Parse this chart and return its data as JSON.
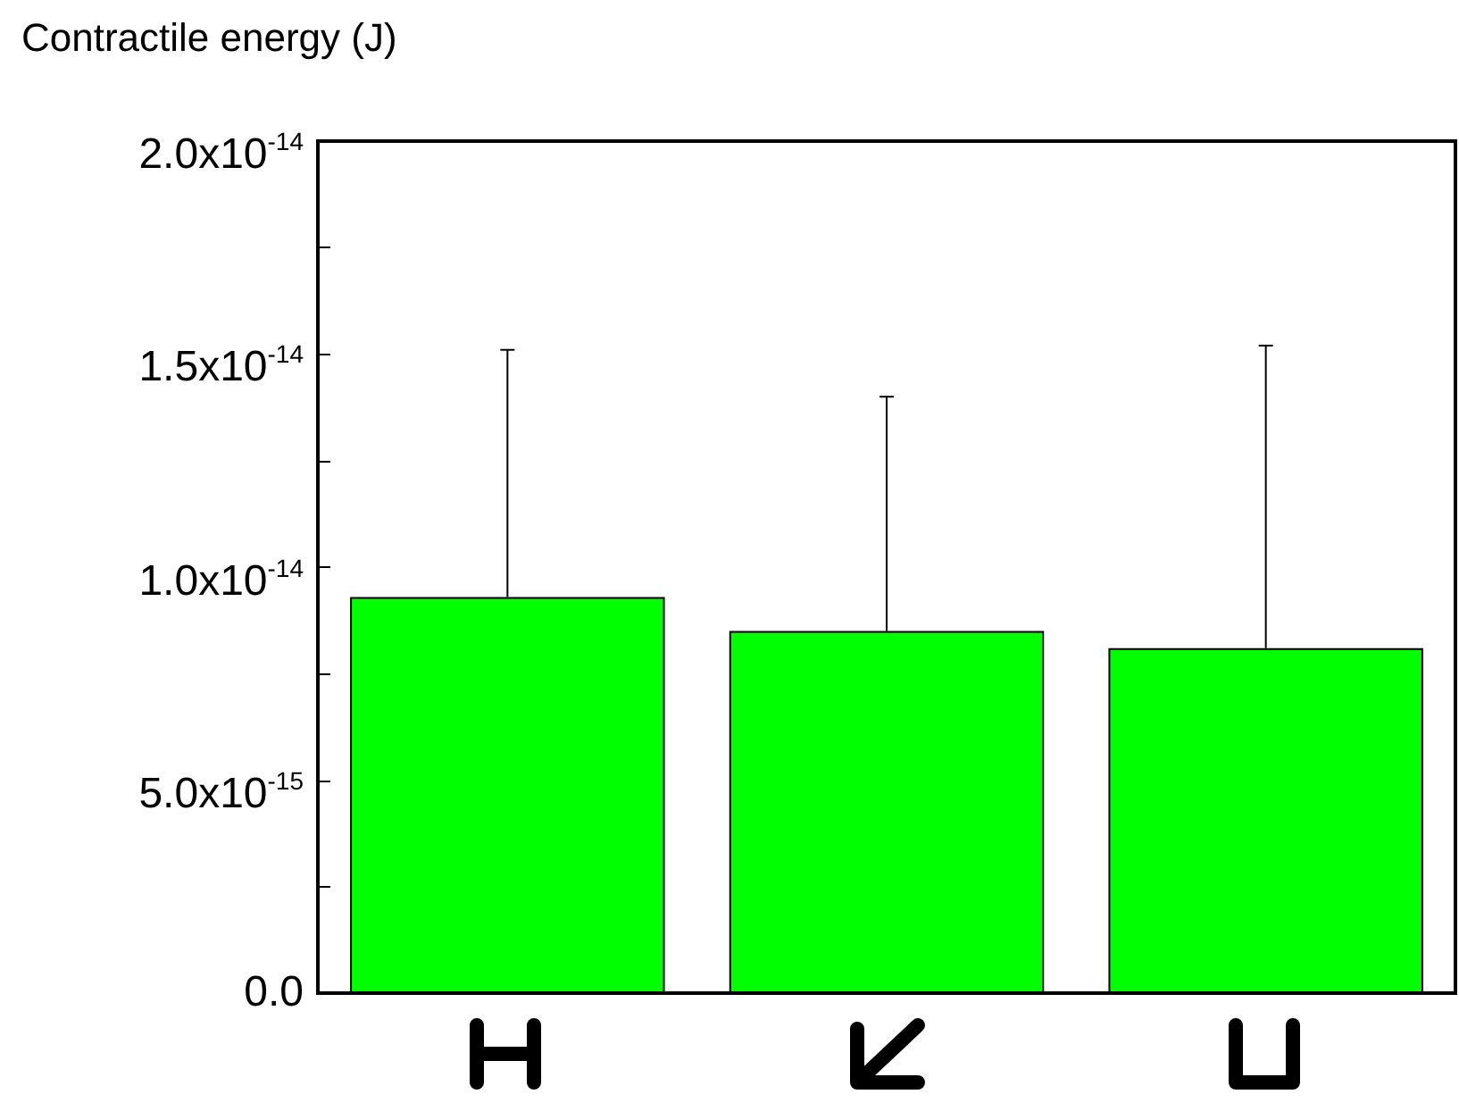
{
  "chart_data": {
    "type": "bar",
    "ylabel": "Contractile energy (J)",
    "categories": [
      null,
      null,
      null
    ],
    "values": [
      9.3e-15,
      8.5e-15,
      8.1e-15
    ],
    "errors": [
      [
        9.3e-15,
        1.51e-14
      ],
      [
        8.5e-15,
        1.4e-14
      ],
      [
        8.1e-15,
        1.52e-14
      ]
    ],
    "color": "#00ff00",
    "ylim": [
      0,
      2e-14
    ],
    "yticks": [
      {
        "value": 0,
        "label": "0.0"
      },
      {
        "value": 2.5e-15,
        "label": null
      },
      {
        "value": 5e-15,
        "label": "5.0x10$^{-15}$"
      },
      {
        "value": 7.5e-15,
        "label": null
      },
      {
        "value": 1e-14,
        "label": "1.0x10$^{-14}$"
      },
      {
        "value": 1.25e-14,
        "label": null
      },
      {
        "value": 1.5e-14,
        "label": "1.5x10$^{-14}$"
      },
      {
        "value": 1.75e-14,
        "label": null
      },
      {
        "value": 2e-14,
        "label": "2.0x10$^{-14}$"
      }
    ],
    "grid": false
  }
}
